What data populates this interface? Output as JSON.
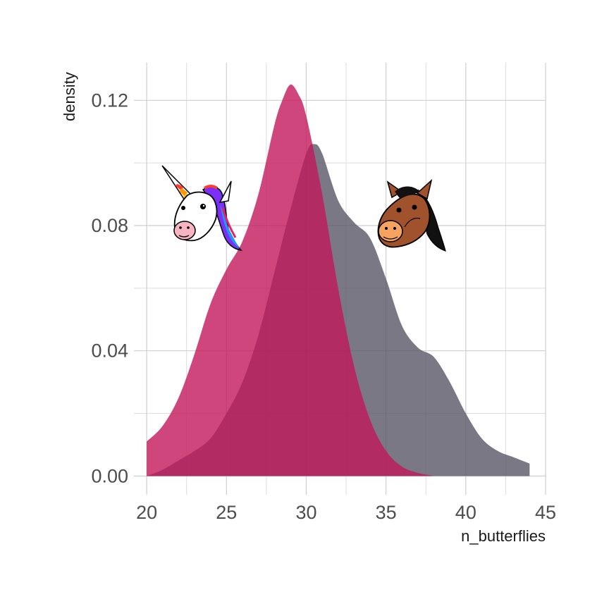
{
  "chart_data": {
    "type": "area",
    "title": "",
    "xlabel": "n_butterflies",
    "ylabel": "density",
    "xlim": [
      19.2,
      45.0
    ],
    "ylim": [
      -0.006,
      0.132
    ],
    "x_ticks": [
      20,
      25,
      30,
      35,
      40,
      45
    ],
    "x_tick_labels": [
      "20",
      "25",
      "30",
      "35",
      "40",
      "45"
    ],
    "y_ticks": [
      0.0,
      0.04,
      0.08,
      0.12
    ],
    "y_tick_labels": [
      "0.00",
      "0.04",
      "0.08",
      "0.12"
    ],
    "y_minor_gridlines": [
      0.02,
      0.06,
      0.1
    ],
    "grid": true,
    "legend": "none",
    "series": [
      {
        "color": "#c2185b",
        "icon": "unicorn-icon",
        "x": [
          20,
          21,
          22,
          23,
          24,
          25,
          26,
          27,
          28,
          28.5,
          29,
          29.5,
          30,
          31,
          32,
          33,
          34,
          35,
          36,
          37,
          38
        ],
        "y": [
          0.011,
          0.016,
          0.025,
          0.039,
          0.055,
          0.066,
          0.075,
          0.09,
          0.112,
          0.12,
          0.125,
          0.122,
          0.115,
          0.09,
          0.06,
          0.035,
          0.018,
          0.008,
          0.003,
          0.001,
          0.0
        ]
      },
      {
        "color": "#555261",
        "icon": "horse-icon",
        "x": [
          20,
          21,
          22,
          23,
          24,
          25,
          26,
          27,
          28,
          29,
          30,
          30.5,
          31,
          32,
          33,
          34,
          35,
          36,
          37,
          38,
          39,
          40,
          41,
          42,
          43,
          44
        ],
        "y": [
          0.0,
          0.002,
          0.005,
          0.008,
          0.012,
          0.02,
          0.03,
          0.045,
          0.065,
          0.085,
          0.103,
          0.106,
          0.103,
          0.088,
          0.081,
          0.076,
          0.063,
          0.048,
          0.041,
          0.038,
          0.03,
          0.02,
          0.012,
          0.008,
          0.006,
          0.004
        ]
      }
    ]
  }
}
